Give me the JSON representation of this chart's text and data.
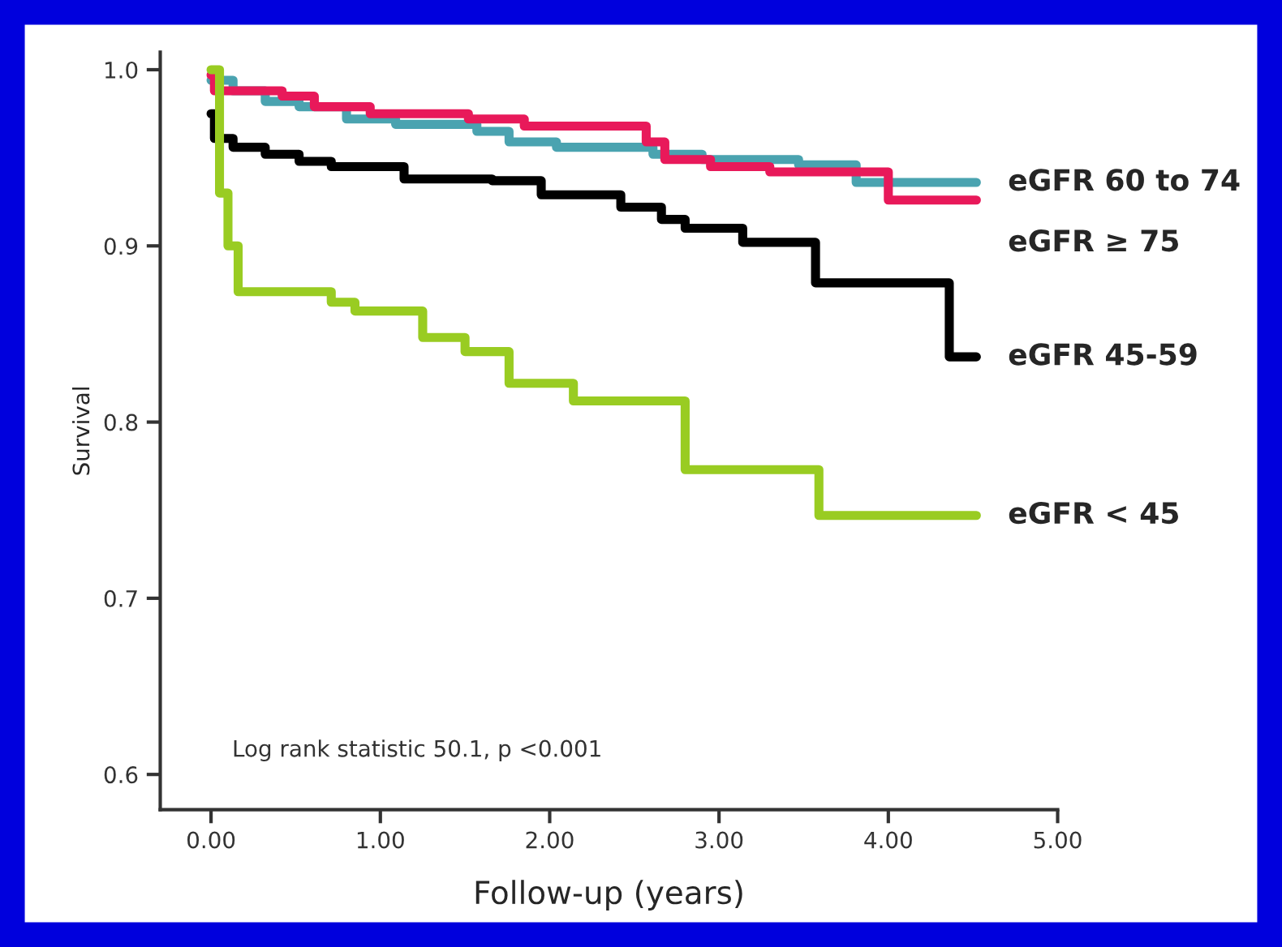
{
  "chart_data": {
    "type": "step",
    "xlabel": "Follow-up (years)",
    "ylabel": "Survival",
    "annotations": [
      "Log rank statistic 50.1, p <0.001"
    ],
    "xlim": [
      -0.3,
      5.0
    ],
    "ylim": [
      0.58,
      1.01
    ],
    "xticks": [
      {
        "value": 0,
        "label": "0.00"
      },
      {
        "value": 1,
        "label": "1.00"
      },
      {
        "value": 2,
        "label": "2.00"
      },
      {
        "value": 3,
        "label": "3.00"
      },
      {
        "value": 4,
        "label": "4.00"
      },
      {
        "value": 5,
        "label": "5.00"
      }
    ],
    "yticks": [
      0.6,
      0.7,
      0.8,
      0.9,
      {
        "value": 1,
        "label": "1.0"
      }
    ],
    "grid": false,
    "legend": false,
    "series": [
      {
        "name": "eGFR 60 to 74",
        "color": "#4aa3b0",
        "x": [
          0,
          0.13,
          0.32,
          0.52,
          0.8,
          1.09,
          1.57,
          1.76,
          2.04,
          2.61,
          2.9,
          3.47,
          3.81,
          4.52
        ],
        "values": [
          0.994,
          0.988,
          0.982,
          0.979,
          0.972,
          0.969,
          0.965,
          0.959,
          0.956,
          0.952,
          0.949,
          0.946,
          0.936,
          0.936
        ]
      },
      {
        "name": "eGFR ≥ 75",
        "color": "#e8195a",
        "x": [
          0,
          0.02,
          0.42,
          0.61,
          0.94,
          1.52,
          1.85,
          2.57,
          2.68,
          2.95,
          3.3,
          4.0,
          4.52
        ],
        "values": [
          0.997,
          0.988,
          0.985,
          0.979,
          0.975,
          0.972,
          0.968,
          0.959,
          0.949,
          0.945,
          0.942,
          0.926,
          0.926
        ]
      },
      {
        "name": "eGFR 45-59",
        "color": "#000000",
        "x": [
          0,
          0.02,
          0.13,
          0.32,
          0.52,
          0.71,
          1.14,
          1.66,
          1.95,
          2.42,
          2.66,
          2.8,
          3.14,
          3.57,
          4.36,
          4.52
        ],
        "values": [
          0.975,
          0.961,
          0.956,
          0.952,
          0.948,
          0.945,
          0.938,
          0.937,
          0.929,
          0.922,
          0.915,
          0.91,
          0.902,
          0.879,
          0.837,
          0.837
        ]
      },
      {
        "name": "eGFR < 45",
        "color": "#99cc22",
        "x": [
          0,
          0.05,
          0.1,
          0.16,
          0.71,
          0.85,
          1.25,
          1.5,
          1.76,
          2.14,
          2.8,
          3.59,
          4.52
        ],
        "values": [
          1.0,
          0.93,
          0.9,
          0.874,
          0.868,
          0.863,
          0.848,
          0.84,
          0.822,
          0.812,
          0.773,
          0.747,
          0.747
        ]
      }
    ]
  }
}
